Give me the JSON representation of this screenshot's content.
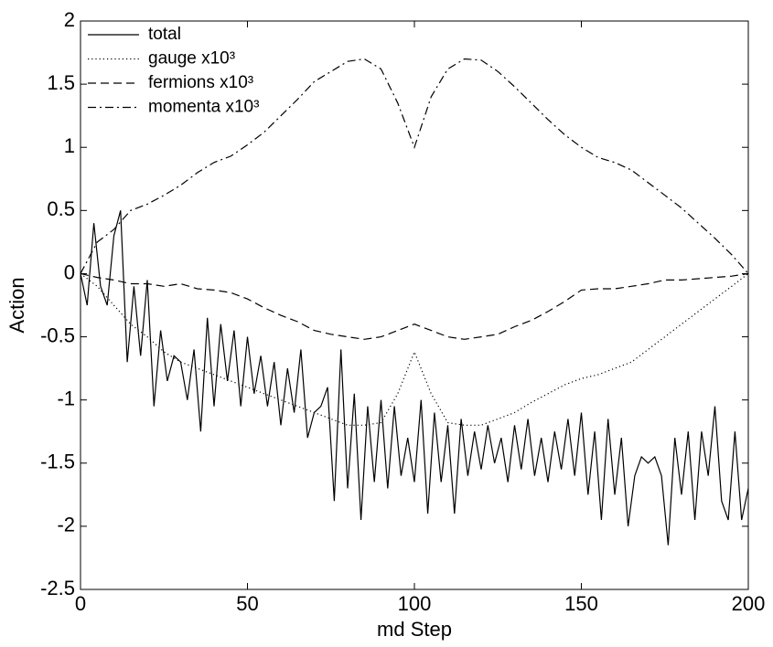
{
  "chart_data": {
    "type": "line",
    "xlabel": "md Step",
    "ylabel": "Action",
    "xlim": [
      0,
      200
    ],
    "ylim": [
      -2.5,
      2
    ],
    "xticks": [
      0,
      50,
      100,
      150,
      200
    ],
    "yticks": [
      -2.5,
      -2,
      -1.5,
      -1,
      -0.5,
      0,
      0.5,
      1,
      1.5,
      2
    ],
    "legend": "upper left",
    "series": [
      {
        "name": "total",
        "color": "#000000",
        "linestyle": "solid",
        "x": [
          0,
          2,
          4,
          6,
          8,
          10,
          12,
          14,
          16,
          18,
          20,
          22,
          24,
          26,
          28,
          30,
          32,
          34,
          36,
          38,
          40,
          42,
          44,
          46,
          48,
          50,
          52,
          54,
          56,
          58,
          60,
          62,
          64,
          66,
          68,
          70,
          72,
          74,
          76,
          78,
          80,
          82,
          84,
          86,
          88,
          90,
          92,
          94,
          96,
          98,
          100,
          102,
          104,
          106,
          108,
          110,
          112,
          114,
          116,
          118,
          120,
          122,
          124,
          126,
          128,
          130,
          132,
          134,
          136,
          138,
          140,
          142,
          144,
          146,
          148,
          150,
          152,
          154,
          156,
          158,
          160,
          162,
          164,
          166,
          168,
          170,
          172,
          174,
          176,
          178,
          180,
          182,
          184,
          186,
          188,
          190,
          192,
          194,
          196,
          198,
          200
        ],
        "values": [
          0,
          -0.25,
          0.4,
          -0.1,
          -0.25,
          0.3,
          0.5,
          -0.7,
          -0.1,
          -0.65,
          -0.05,
          -1.05,
          -0.45,
          -0.85,
          -0.65,
          -0.7,
          -1.0,
          -0.6,
          -1.25,
          -0.35,
          -1.05,
          -0.4,
          -0.85,
          -0.45,
          -1.05,
          -0.5,
          -0.95,
          -0.65,
          -1.05,
          -0.7,
          -1.2,
          -0.75,
          -1.1,
          -0.6,
          -1.3,
          -1.1,
          -1.05,
          -0.9,
          -1.8,
          -0.6,
          -1.7,
          -0.95,
          -1.95,
          -1.05,
          -1.65,
          -1.0,
          -1.7,
          -1.05,
          -1.6,
          -1.3,
          -1.65,
          -1.0,
          -1.9,
          -1.1,
          -1.65,
          -1.2,
          -1.9,
          -1.15,
          -1.6,
          -1.25,
          -1.55,
          -1.2,
          -1.5,
          -1.3,
          -1.65,
          -1.2,
          -1.55,
          -1.15,
          -1.6,
          -1.3,
          -1.65,
          -1.25,
          -1.55,
          -1.15,
          -1.6,
          -1.1,
          -1.75,
          -1.25,
          -1.95,
          -1.15,
          -1.75,
          -1.3,
          -2.0,
          -1.6,
          -1.45,
          -1.5,
          -1.45,
          -1.6,
          -2.15,
          -1.3,
          -1.75,
          -1.25,
          -1.95,
          -1.25,
          -1.6,
          -1.05,
          -1.8,
          -1.95,
          -1.25,
          -1.95,
          -1.7
        ]
      },
      {
        "name": "gauge x10³",
        "color": "#000000",
        "linestyle": "dotted",
        "x": [
          0,
          5,
          10,
          15,
          20,
          25,
          30,
          35,
          40,
          45,
          50,
          55,
          60,
          65,
          70,
          75,
          80,
          85,
          90,
          95,
          100,
          105,
          110,
          115,
          120,
          125,
          130,
          135,
          140,
          145,
          150,
          155,
          160,
          165,
          170,
          175,
          180,
          185,
          190,
          195,
          200
        ],
        "values": [
          0,
          -0.1,
          -0.25,
          -0.4,
          -0.5,
          -0.62,
          -0.7,
          -0.75,
          -0.8,
          -0.85,
          -0.9,
          -0.95,
          -1.0,
          -1.05,
          -1.1,
          -1.15,
          -1.2,
          -1.2,
          -1.18,
          -0.95,
          -0.62,
          -0.95,
          -1.18,
          -1.2,
          -1.2,
          -1.15,
          -1.1,
          -1.02,
          -0.95,
          -0.88,
          -0.83,
          -0.8,
          -0.75,
          -0.7,
          -0.6,
          -0.5,
          -0.4,
          -0.3,
          -0.2,
          -0.1,
          0
        ]
      },
      {
        "name": "fermions x10³",
        "color": "#000000",
        "linestyle": "dashed",
        "x": [
          0,
          5,
          10,
          15,
          20,
          25,
          30,
          35,
          40,
          45,
          50,
          55,
          60,
          65,
          70,
          75,
          80,
          85,
          90,
          95,
          100,
          105,
          110,
          115,
          120,
          125,
          130,
          135,
          140,
          145,
          150,
          155,
          160,
          165,
          170,
          175,
          180,
          185,
          190,
          195,
          200
        ],
        "values": [
          0,
          -0.03,
          -0.05,
          -0.08,
          -0.08,
          -0.1,
          -0.08,
          -0.12,
          -0.13,
          -0.15,
          -0.2,
          -0.27,
          -0.33,
          -0.38,
          -0.45,
          -0.48,
          -0.5,
          -0.52,
          -0.5,
          -0.45,
          -0.4,
          -0.45,
          -0.5,
          -0.52,
          -0.5,
          -0.48,
          -0.42,
          -0.37,
          -0.3,
          -0.22,
          -0.13,
          -0.12,
          -0.12,
          -0.1,
          -0.08,
          -0.05,
          -0.05,
          -0.04,
          -0.03,
          -0.02,
          0
        ]
      },
      {
        "name": "momenta x10³",
        "color": "#000000",
        "linestyle": "dashdot",
        "x": [
          0,
          5,
          10,
          15,
          20,
          25,
          30,
          35,
          40,
          45,
          50,
          55,
          60,
          65,
          70,
          75,
          80,
          85,
          90,
          95,
          100,
          105,
          110,
          115,
          120,
          125,
          130,
          135,
          140,
          145,
          150,
          155,
          160,
          165,
          170,
          175,
          180,
          185,
          190,
          195,
          200
        ],
        "values": [
          0,
          0.25,
          0.35,
          0.5,
          0.55,
          0.62,
          0.7,
          0.8,
          0.88,
          0.93,
          1.02,
          1.12,
          1.25,
          1.38,
          1.52,
          1.6,
          1.68,
          1.7,
          1.62,
          1.35,
          1.0,
          1.4,
          1.62,
          1.7,
          1.69,
          1.6,
          1.48,
          1.35,
          1.22,
          1.1,
          1.0,
          0.92,
          0.88,
          0.82,
          0.72,
          0.62,
          0.52,
          0.4,
          0.28,
          0.15,
          0
        ]
      }
    ]
  }
}
